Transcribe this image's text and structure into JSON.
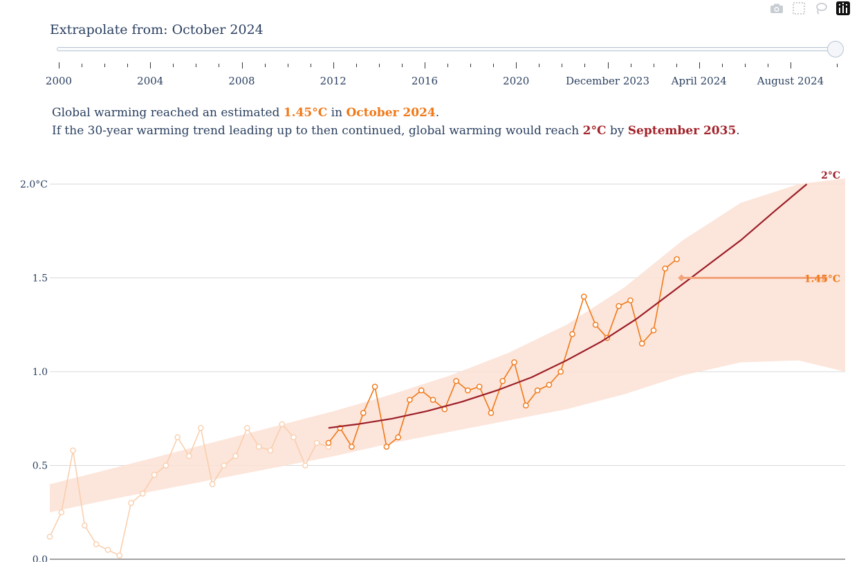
{
  "modebar": {
    "icons": [
      "camera-icon",
      "select-box-icon",
      "lasso-icon",
      "plotly-logo-icon"
    ]
  },
  "slider": {
    "label": "Extrapolate from: October 2024",
    "tick_labels": [
      "2000",
      "2004",
      "2008",
      "2012",
      "2016",
      "2020",
      "December 2023",
      "April 2024",
      "August 2024"
    ],
    "selected": "October 2024",
    "colors": {
      "track_border": "#b8c3d3"
    }
  },
  "info": {
    "line1_prefix": "Global warming reached an estimated ",
    "line1_value": "1.45°C",
    "line1_mid": " in ",
    "line1_date": "October 2024",
    "line1_end": ".",
    "line2_prefix": "If the 30-year warming trend leading up to then continued, global warming would reach ",
    "line2_value": "2°C",
    "line2_mid": " by ",
    "line2_date": "September 2035",
    "line2_end": "."
  },
  "chart_data": {
    "type": "line",
    "title": "",
    "xlabel": "",
    "ylabel": "",
    "ylim": [
      0,
      2.0
    ],
    "xlim": [
      1970.5,
      2039
    ],
    "y_ticks": [
      {
        "value": 0.0,
        "label": "0.0"
      },
      {
        "value": 0.5,
        "label": "0.5"
      },
      {
        "value": 1.0,
        "label": "1.0"
      },
      {
        "value": 1.5,
        "label": "1.5"
      },
      {
        "value": 2.0,
        "label": "2.0°C"
      }
    ],
    "grid": true,
    "colors": {
      "orange": "#f07818",
      "faded": "#f9cfae",
      "band": "#fbe1d4",
      "trend": "#9b1d26",
      "threshold": "#f2a37b",
      "grid": "#d9d9d9"
    },
    "series": [
      {
        "role": "observed-faded",
        "x": [
          1970.5,
          1971.5,
          1972.5,
          1973.5,
          1974.5,
          1975.5,
          1976.5,
          1977.5,
          1978.5,
          1979.5,
          1980.5,
          1981.5,
          1982.5,
          1983.5,
          1984.5,
          1985.5,
          1986.5,
          1987.5,
          1988.5,
          1989.5,
          1990.5,
          1991.5,
          1992.5,
          1993.5,
          1994.5
        ],
        "y": [
          0.12,
          0.25,
          0.58,
          0.18,
          0.08,
          0.05,
          0.02,
          0.3,
          0.35,
          0.45,
          0.5,
          0.65,
          0.55,
          0.7,
          0.4,
          0.5,
          0.55,
          0.7,
          0.6,
          0.58,
          0.72,
          0.65,
          0.5,
          0.62,
          0.6
        ]
      },
      {
        "role": "observed",
        "x": [
          1994.5,
          1995.5,
          1996.5,
          1997.5,
          1998.5,
          1999.5,
          2000.5,
          2001.5,
          2002.5,
          2003.5,
          2004.5,
          2005.5,
          2006.5,
          2007.5,
          2008.5,
          2009.5,
          2010.5,
          2011.5,
          2012.5,
          2013.5,
          2014.5,
          2015.5,
          2016.5,
          2017.5,
          2018.5,
          2019.5,
          2020.5,
          2021.5,
          2022.5,
          2023.5,
          2024.5
        ],
        "y": [
          0.62,
          0.7,
          0.6,
          0.78,
          0.92,
          0.6,
          0.65,
          0.85,
          0.9,
          0.85,
          0.8,
          0.95,
          0.9,
          0.92,
          0.78,
          0.95,
          1.05,
          0.82,
          0.9,
          0.93,
          1.0,
          1.2,
          1.4,
          1.25,
          1.18,
          1.35,
          1.38,
          1.15,
          1.22,
          1.55,
          1.6
        ]
      }
    ],
    "trend": {
      "x": [
        1994.5,
        1997,
        2000,
        2003,
        2006,
        2009,
        2012,
        2015,
        2018,
        2021,
        2024,
        2027,
        2030,
        2033,
        2035.7
      ],
      "y": [
        0.7,
        0.72,
        0.75,
        0.79,
        0.84,
        0.9,
        0.97,
        1.06,
        1.16,
        1.28,
        1.42,
        1.56,
        1.7,
        1.86,
        2.0
      ]
    },
    "band": {
      "x": [
        1970.5,
        1975,
        1980,
        1985,
        1990,
        1995,
        2000,
        2005,
        2010,
        2015,
        2020,
        2025,
        2030,
        2035,
        2039
      ],
      "upper": [
        0.4,
        0.47,
        0.55,
        0.63,
        0.71,
        0.79,
        0.88,
        0.98,
        1.1,
        1.25,
        1.45,
        1.7,
        1.9,
        2.0,
        2.03
      ],
      "lower": [
        0.25,
        0.31,
        0.37,
        0.43,
        0.49,
        0.55,
        0.62,
        0.68,
        0.74,
        0.8,
        0.88,
        0.98,
        1.05,
        1.06,
        1.0
      ]
    },
    "threshold": {
      "x": [
        2024.9,
        2037.2
      ],
      "y": 1.5
    },
    "annotations": {
      "two_c": "2°C",
      "current": "1.45°C"
    }
  }
}
